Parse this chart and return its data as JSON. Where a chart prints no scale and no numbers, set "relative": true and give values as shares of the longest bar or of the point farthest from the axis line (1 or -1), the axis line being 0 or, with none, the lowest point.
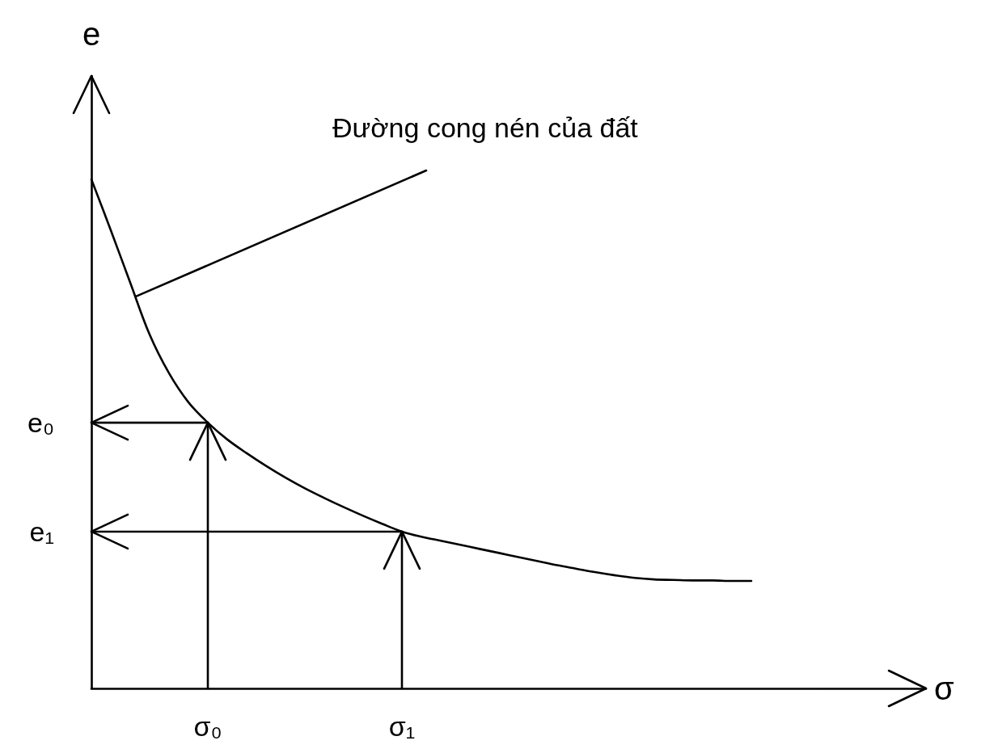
{
  "chart_data": {
    "type": "line",
    "relative": true,
    "xlabel": "σ",
    "ylabel": "e",
    "categories": [
      null,
      null,
      null,
      null,
      null,
      null,
      "σ₀",
      null,
      null,
      null,
      null,
      null,
      null,
      null,
      null,
      null,
      "σ₁",
      null,
      null,
      null,
      null,
      null,
      null,
      null,
      null,
      null,
      null,
      null,
      null,
      null,
      null,
      null,
      null,
      null,
      null,
      null,
      null,
      null,
      null,
      null,
      null,
      null,
      null,
      null
    ],
    "series": [
      {
        "name": "Đường cong nén của đất",
        "color": "#000000",
        "values": [
          1,
          0.9,
          0.797,
          0.695,
          0.619,
          0.562,
          0.522,
          0.489,
          0.462,
          0.437,
          0.414,
          0.393,
          0.374,
          0.356,
          0.339,
          0.323,
          0.308,
          0.298,
          0.29,
          0.282,
          0.274,
          0.266,
          0.258,
          0.25,
          0.242,
          0.235,
          0.228,
          0.222,
          0.217,
          0.214,
          0.213,
          0.212,
          0.212,
          0.211,
          0.211,
          null,
          null,
          null,
          null,
          null,
          null,
          null,
          null,
          null
        ]
      }
    ],
    "ref_lines": [
      {
        "axis": "y",
        "value": 0.522,
        "label": "e₀"
      },
      {
        "axis": "y",
        "value": 0.308,
        "label": "e₁"
      },
      {
        "axis": "x",
        "value": "σ₀"
      },
      {
        "axis": "x",
        "value": "σ₁"
      }
    ]
  }
}
